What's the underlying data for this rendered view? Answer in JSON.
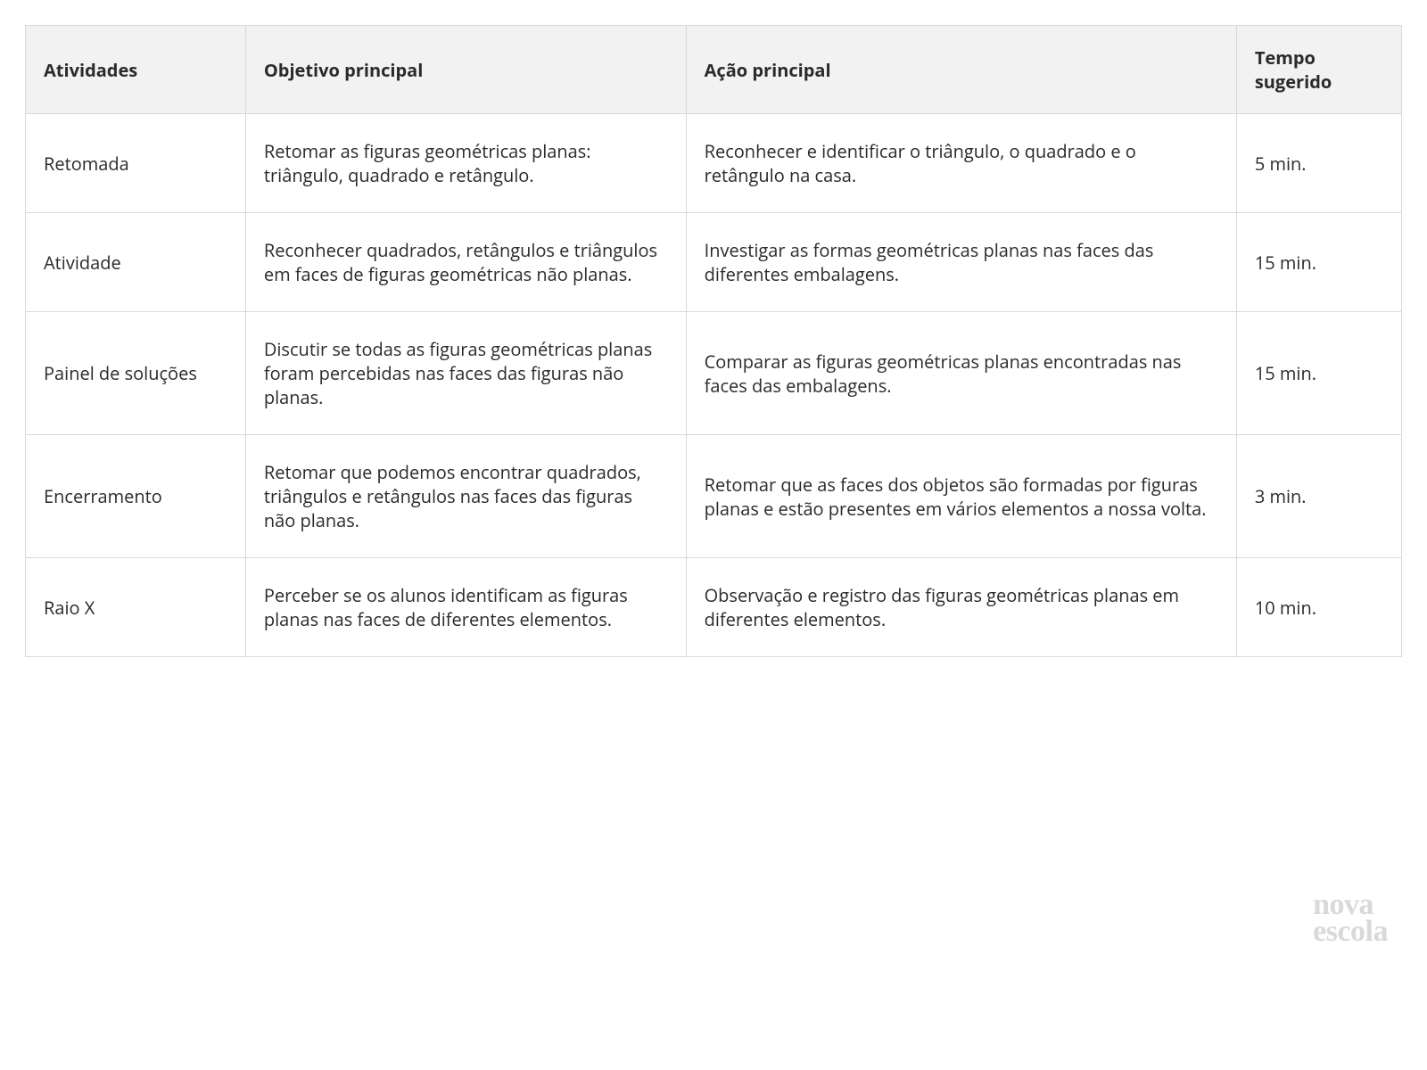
{
  "table": {
    "columns": [
      "Atividades",
      "Objetivo principal",
      "Ação principal",
      "Tempo sugerido"
    ],
    "rows": [
      {
        "atividade": "Retomada",
        "objetivo": "Retomar as figuras geométricas planas: triângulo, quadrado e retângulo.",
        "acao": "Reconhecer e identificar o triângulo, o quadrado e o retângulo na casa.",
        "tempo": "5 min."
      },
      {
        "atividade": "Atividade",
        "objetivo": "Reconhecer quadrados, retângulos e triângulos em faces de figuras geométricas não planas.",
        "acao": "Investigar as formas geométricas planas nas faces das diferentes embalagens.",
        "tempo": "15 min."
      },
      {
        "atividade": "Painel de soluções",
        "objetivo": "Discutir se todas as figuras geométricas planas foram percebidas nas faces das figuras não planas.",
        "acao": "Comparar as figuras geométricas planas encontradas nas faces das embalagens.",
        "tempo": "15 min."
      },
      {
        "atividade": "Encerramento",
        "objetivo": "Retomar que podemos encontrar quadrados, triângulos e retângulos nas faces das figuras não planas.",
        "acao": "Retomar que as faces dos objetos são formadas por figuras planas e estão presentes em vários elementos a nossa volta.",
        "tempo": "3 min."
      },
      {
        "atividade": "Raio X",
        "objetivo": "Perceber se os alunos identificam as figuras planas nas faces de diferentes elementos.",
        "acao": "Observação e registro das figuras geométricas planas em diferentes elementos.",
        "tempo": "10 min."
      }
    ],
    "header_bg": "#f2f2f2",
    "border_color": "#d9d9d9",
    "font_size": 20,
    "header_font_weight": 700,
    "col_widths_pct": [
      16,
      32,
      40,
      12
    ]
  },
  "logo": {
    "line1": "nova",
    "line2": "escola",
    "color": "#d9d9d9"
  }
}
